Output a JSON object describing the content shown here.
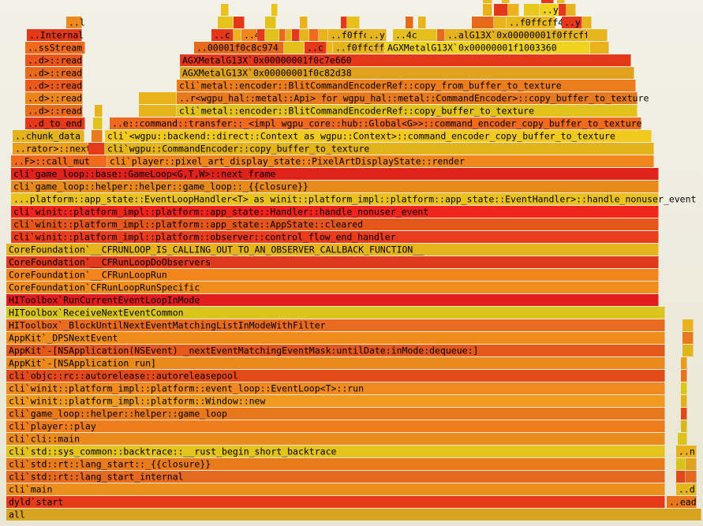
{
  "chart_data": {
    "type": "flamegraph",
    "orientation": "bottom-up",
    "x_domain": [
      0,
      891
    ],
    "frames": [
      {
        "d": 0,
        "s": 8,
        "e": 889,
        "label": "all",
        "color": "#d8a31f"
      },
      {
        "d": 1,
        "s": 8,
        "e": 843,
        "label": "dyld`start",
        "color": "#e63b1a"
      },
      {
        "d": 1,
        "s": 845,
        "e": 883,
        "label": "..ead",
        "color": "#e8761a"
      },
      {
        "d": 2,
        "s": 8,
        "e": 843,
        "label": "cli`main",
        "color": "#ed8f1c"
      },
      {
        "d": 2,
        "s": 857,
        "e": 883,
        "label": "..d",
        "color": "#e4b51c"
      },
      {
        "d": 3,
        "s": 8,
        "e": 843,
        "label": "cli`std::rt::lang_start_internal",
        "color": "#e66920"
      },
      {
        "d": 3,
        "s": 857,
        "e": 869,
        "label": "",
        "color": "#e04a1a"
      },
      {
        "d": 3,
        "s": 869,
        "e": 883,
        "label": "",
        "color": "#e36a20"
      },
      {
        "d": 4,
        "s": 8,
        "e": 843,
        "label": "cli`std::rt::lang_start::_{{closure}}",
        "color": "#e97a1c"
      },
      {
        "d": 4,
        "s": 857,
        "e": 869,
        "label": "",
        "color": "#d8c31c"
      },
      {
        "d": 4,
        "s": 869,
        "e": 883,
        "label": "",
        "color": "#e0a21c"
      },
      {
        "d": 5,
        "s": 8,
        "e": 843,
        "label": "cli`std::sys_common::backtrace::__rust_begin_short_backtrace",
        "color": "#e4c31c"
      },
      {
        "d": 5,
        "s": 857,
        "e": 883,
        "label": "..n",
        "color": "#e8b01d"
      },
      {
        "d": 6,
        "s": 8,
        "e": 843,
        "label": "cli`cli::main",
        "color": "#eb8a1c"
      },
      {
        "d": 6,
        "s": 859,
        "e": 871,
        "label": "",
        "color": "#ddc21c"
      },
      {
        "d": 7,
        "s": 8,
        "e": 843,
        "label": "cli`player::play",
        "color": "#ef7d1c"
      },
      {
        "d": 7,
        "s": 863,
        "e": 871,
        "label": "",
        "color": "#d8b71c"
      },
      {
        "d": 8,
        "s": 8,
        "e": 843,
        "label": "cli`game_loop::helper::helper::game_loop",
        "color": "#e8781c"
      },
      {
        "d": 8,
        "s": 863,
        "e": 871,
        "label": "",
        "color": "#e04a1a"
      },
      {
        "d": 9,
        "s": 8,
        "e": 843,
        "label": "cli`winit::platform_impl::platform::Window::new",
        "color": "#f09a1e"
      },
      {
        "d": 9,
        "s": 863,
        "e": 871,
        "label": "",
        "color": "#e1b01c"
      },
      {
        "d": 10,
        "s": 8,
        "e": 843,
        "label": "cli`winit::platform_impl::platform::event_loop::EventLoop<T>::run",
        "color": "#f08a1e"
      },
      {
        "d": 10,
        "s": 863,
        "e": 871,
        "label": "",
        "color": "#d8c71c"
      },
      {
        "d": 11,
        "s": 8,
        "e": 843,
        "label": "cli`objc::rc::autorelease::autoreleasepool",
        "color": "#e24a1a"
      },
      {
        "d": 11,
        "s": 863,
        "e": 871,
        "label": "",
        "color": "#e6721c"
      },
      {
        "d": 12,
        "s": 8,
        "e": 843,
        "label": "AppKit`-[NSApplication run]",
        "color": "#ea8a1c"
      },
      {
        "d": 12,
        "s": 863,
        "e": 871,
        "label": "",
        "color": "#eb9c1e"
      },
      {
        "d": 13,
        "s": 8,
        "e": 843,
        "label": "AppKit`-[NSApplication(NSEvent) _nextEventMatchingEventMask:untilDate:inMode:dequeue:]",
        "color": "#e4581c"
      },
      {
        "d": 13,
        "s": 865,
        "e": 879,
        "label": "",
        "color": "#e1b61c"
      },
      {
        "d": 14,
        "s": 8,
        "e": 843,
        "label": "AppKit`_DPSNextEvent",
        "color": "#ef8d1c"
      },
      {
        "d": 14,
        "s": 865,
        "e": 879,
        "label": "",
        "color": "#e67a1c"
      },
      {
        "d": 15,
        "s": 8,
        "e": 843,
        "label": "HIToolbox`_BlockUntilNextEventMatchingListInModeWithFilter",
        "color": "#e96b20"
      },
      {
        "d": 15,
        "s": 865,
        "e": 879,
        "label": "",
        "color": "#ebb21c"
      },
      {
        "d": 16,
        "s": 8,
        "e": 843,
        "label": "HIToolbox`ReceiveNextEventCommon",
        "color": "#d9c51c"
      },
      {
        "d": 17,
        "s": 8,
        "e": 835,
        "label": "HIToolbox`RunCurrentEventLoopInMode",
        "color": "#e21d1d"
      },
      {
        "d": 18,
        "s": 8,
        "e": 835,
        "label": "CoreFoundation`CFRunLoopRunSpecific",
        "color": "#f08d1c"
      },
      {
        "d": 19,
        "s": 8,
        "e": 835,
        "label": "CoreFoundation`__CFRunLoopRun",
        "color": "#f3851c"
      },
      {
        "d": 20,
        "s": 8,
        "e": 835,
        "label": "CoreFoundation`__CFRunLoopDoObservers",
        "color": "#df3a1c"
      },
      {
        "d": 21,
        "s": 8,
        "e": 835,
        "label": "CoreFoundation`__CFRUNLOOP_IS_CALLING_OUT_TO_AN_OBSERVER_CALLBACK_FUNCTION__",
        "color": "#e5b41c"
      },
      {
        "d": 22,
        "s": 14,
        "e": 835,
        "label": "cli`winit::platform_impl::platform::observer::control_flow_end_handler",
        "color": "#ea3b1c"
      },
      {
        "d": 23,
        "s": 14,
        "e": 835,
        "label": "cli`winit::platform_impl::platform::app_state::AppState::cleared",
        "color": "#e4561c"
      },
      {
        "d": 24,
        "s": 14,
        "e": 835,
        "label": "cli`winit::platform_impl::platform::app_state::Handler::handle_nonuser_event",
        "color": "#f1241c"
      },
      {
        "d": 25,
        "s": 14,
        "e": 835,
        "label": "...platform::app_state::EventLoopHandler<T> as winit::platform_impl::platform::app_state::EventHandler>::handle_nonuser_event",
        "color": "#e9c31c"
      },
      {
        "d": 26,
        "s": 14,
        "e": 835,
        "label": "cli`game_loop::helper::helper::game_loop::_{{closure}}",
        "color": "#e68a1c"
      },
      {
        "d": 27,
        "s": 14,
        "e": 835,
        "label": "cli`game_loop::base::GameLoop<G,T,W>::next_frame",
        "color": "#df231c"
      },
      {
        "d": 28,
        "s": 14,
        "e": 136,
        "label": "..F>::call_mut",
        "color": "#ef6a1c"
      },
      {
        "d": 28,
        "s": 136,
        "e": 829,
        "label": "cli`player::pixel_art_display_state::PixelArtDisplayState::render",
        "color": "#f0861c"
      },
      {
        "d": 29,
        "s": 16,
        "e": 112,
        "label": "..rator>::next",
        "color": "#ea9c1c"
      },
      {
        "d": 29,
        "s": 112,
        "e": 133,
        "label": "",
        "color": "#e53a1a"
      },
      {
        "d": 29,
        "s": 133,
        "e": 829,
        "label": "cli`wgpu::CommandEncoder::copy_buffer_to_texture",
        "color": "#e3b31c"
      },
      {
        "d": 30,
        "s": 16,
        "e": 107,
        "label": "..chunk_data",
        "color": "#e3b21c"
      },
      {
        "d": 30,
        "s": 116,
        "e": 130,
        "label": "",
        "color": "#e67a1c"
      },
      {
        "d": 30,
        "s": 133,
        "e": 826,
        "label": "cli`<wgpu::backend::direct::Context as wgpu::Context>::command_encoder_copy_buffer_to_texture",
        "color": "#f2c91e"
      },
      {
        "d": 31,
        "s": 32,
        "e": 108,
        "label": "..d_to_end",
        "color": "#e4381a"
      },
      {
        "d": 31,
        "s": 118,
        "e": 130,
        "label": "",
        "color": "#e0c41c"
      },
      {
        "d": 31,
        "s": 139,
        "e": 813,
        "label": "..e::command::transfer::_<impl wgpu_core::hub::Global<G>>::command_encoder_copy_buffer_to_texture",
        "color": "#ef6a1c"
      },
      {
        "d": 32,
        "s": 32,
        "e": 105,
        "label": "..d>::read",
        "color": "#e96b1c"
      },
      {
        "d": 32,
        "s": 120,
        "e": 130,
        "label": "",
        "color": "#e6b41c"
      },
      {
        "d": 32,
        "s": 176,
        "e": 224,
        "label": "",
        "color": "#e5b41c"
      },
      {
        "d": 32,
        "s": 224,
        "e": 808,
        "label": "cli`metal::encoder::BlitCommandEncoderRef::copy_buffer_to_texture",
        "color": "#e3c21c"
      },
      {
        "d": 33,
        "s": 32,
        "e": 105,
        "label": "..d>::read",
        "color": "#ec861c"
      },
      {
        "d": 33,
        "s": 176,
        "e": 224,
        "label": "",
        "color": "#e8b21c"
      },
      {
        "d": 33,
        "s": 224,
        "e": 808,
        "label": "..r<wgpu_hal::metal::Api> for wgpu_hal::metal::CommandEncoder>::copy_buffer_to_texture",
        "color": "#e77a1c"
      },
      {
        "d": 34,
        "s": 32,
        "e": 105,
        "label": "..d>::read",
        "color": "#e95a1c"
      },
      {
        "d": 34,
        "s": 224,
        "e": 806,
        "label": "cli`metal::encoder::BlitCommandEncoderRef::copy_from_buffer_to_texture",
        "color": "#eb7d1c"
      },
      {
        "d": 35,
        "s": 32,
        "e": 105,
        "label": "..d>::read",
        "color": "#e76a1c"
      },
      {
        "d": 35,
        "s": 228,
        "e": 804,
        "label": "AGXMetalG13X`0x00000001f0c82d38",
        "color": "#e0a21c"
      },
      {
        "d": 36,
        "s": 32,
        "e": 105,
        "label": "..d>::read",
        "color": "#e8561c"
      },
      {
        "d": 36,
        "s": 228,
        "e": 800,
        "label": "AGXMetalG13X`0x00000001f0c7e660",
        "color": "#e4381a"
      },
      {
        "d": 37,
        "s": 32,
        "e": 108,
        "label": "..ssStream",
        "color": "#ef6a1c"
      },
      {
        "d": 37,
        "s": 246,
        "e": 360,
        "label": "..00001f0c8c974",
        "color": "#e66a1c"
      },
      {
        "d": 37,
        "s": 360,
        "e": 386,
        "label": "",
        "color": "#e4c01c"
      },
      {
        "d": 37,
        "s": 386,
        "e": 414,
        "label": "..c",
        "color": "#e53a1a"
      },
      {
        "d": 37,
        "s": 414,
        "e": 422,
        "label": "",
        "color": "#f0b41c"
      },
      {
        "d": 37,
        "s": 422,
        "e": 488,
        "label": "..f0ffcff4",
        "color": "#e5b41c"
      },
      {
        "d": 37,
        "s": 488,
        "e": 748,
        "label": "AGXMetalG13X`0x00000001f1003360",
        "color": "#f0d21e"
      },
      {
        "d": 37,
        "s": 748,
        "e": 772,
        "label": "",
        "color": "#e8b21c"
      },
      {
        "d": 38,
        "s": 34,
        "e": 104,
        "label": "..Internal",
        "color": "#e4381a"
      },
      {
        "d": 38,
        "s": 268,
        "e": 296,
        "label": "..c",
        "color": "#e4381a"
      },
      {
        "d": 38,
        "s": 296,
        "e": 306,
        "label": "",
        "color": "#eab21c"
      },
      {
        "d": 38,
        "s": 306,
        "e": 326,
        "label": "..4",
        "color": "#f0861c"
      },
      {
        "d": 38,
        "s": 326,
        "e": 336,
        "label": "",
        "color": "#e3381a"
      },
      {
        "d": 38,
        "s": 336,
        "e": 354,
        "label": "",
        "color": "#e0c21c"
      },
      {
        "d": 38,
        "s": 354,
        "e": 362,
        "label": "",
        "color": "#e66a1c"
      },
      {
        "d": 38,
        "s": 362,
        "e": 370,
        "label": "",
        "color": "#eab21c"
      },
      {
        "d": 38,
        "s": 370,
        "e": 380,
        "label": "",
        "color": "#e23a1a"
      },
      {
        "d": 38,
        "s": 380,
        "e": 392,
        "label": "",
        "color": "#e7b41c"
      },
      {
        "d": 38,
        "s": 392,
        "e": 404,
        "label": "",
        "color": "#ee6a1c"
      },
      {
        "d": 38,
        "s": 404,
        "e": 416,
        "label": "",
        "color": "#eab21c"
      },
      {
        "d": 38,
        "s": 416,
        "e": 482,
        "label": "..f0ffcff4",
        "color": "#e6b41c"
      },
      {
        "d": 38,
        "s": 464,
        "e": 490,
        "label": "..y",
        "color": "#e6b41c"
      },
      {
        "d": 38,
        "s": 498,
        "e": 554,
        "label": "..4c",
        "color": "#e5c01c"
      },
      {
        "d": 38,
        "s": 554,
        "e": 564,
        "label": "",
        "color": "#e66a1c"
      },
      {
        "d": 38,
        "s": 564,
        "e": 744,
        "label": "..alG13X`0x00000001f0ffcff4",
        "color": "#e4b21c"
      },
      {
        "d": 38,
        "s": 744,
        "e": 770,
        "label": "",
        "color": "#e7b61c"
      },
      {
        "d": 39,
        "s": 84,
        "e": 104,
        "label": "..l",
        "color": "#ec8a1c"
      },
      {
        "d": 39,
        "s": 276,
        "e": 296,
        "label": "",
        "color": "#e6c21c"
      },
      {
        "d": 39,
        "s": 296,
        "e": 310,
        "label": "",
        "color": "#e4381a"
      },
      {
        "d": 39,
        "s": 336,
        "e": 350,
        "label": "",
        "color": "#e4c21c"
      },
      {
        "d": 39,
        "s": 380,
        "e": 390,
        "label": "",
        "color": "#eab21c"
      },
      {
        "d": 39,
        "s": 432,
        "e": 440,
        "label": "",
        "color": "#e23a1a"
      },
      {
        "d": 39,
        "s": 440,
        "e": 456,
        "label": "",
        "color": "#e8c01c"
      },
      {
        "d": 39,
        "s": 514,
        "e": 524,
        "label": "",
        "color": "#e66a1c"
      },
      {
        "d": 39,
        "s": 530,
        "e": 540,
        "label": "",
        "color": "#e8b41c"
      },
      {
        "d": 39,
        "s": 598,
        "e": 626,
        "label": "",
        "color": "#e66a1c"
      },
      {
        "d": 39,
        "s": 626,
        "e": 642,
        "label": "",
        "color": "#e8b21c"
      },
      {
        "d": 39,
        "s": 642,
        "e": 704,
        "label": "..f0ffcff4",
        "color": "#e9b81c"
      },
      {
        "d": 39,
        "s": 712,
        "e": 738,
        "label": "..y",
        "color": "#e4381a"
      },
      {
        "d": 39,
        "s": 738,
        "e": 750,
        "label": "",
        "color": "#e6b41c"
      },
      {
        "d": 40,
        "s": 280,
        "e": 290,
        "label": "",
        "color": "#eac01c"
      },
      {
        "d": 40,
        "s": 344,
        "e": 352,
        "label": "",
        "color": "#e8c41c"
      },
      {
        "d": 40,
        "s": 612,
        "e": 624,
        "label": "",
        "color": "#e8b21c"
      },
      {
        "d": 40,
        "s": 626,
        "e": 644,
        "label": "",
        "color": "#e4381a"
      },
      {
        "d": 40,
        "s": 644,
        "e": 658,
        "label": "",
        "color": "#eab21c"
      },
      {
        "d": 40,
        "s": 664,
        "e": 684,
        "label": "",
        "color": "#e8c81c"
      },
      {
        "d": 40,
        "s": 684,
        "e": 708,
        "label": "..y",
        "color": "#f0d21e"
      },
      {
        "d": 40,
        "s": 708,
        "e": 718,
        "label": "",
        "color": "#e4381a"
      },
      {
        "d": 40,
        "s": 718,
        "e": 730,
        "label": "",
        "color": "#e8b21c"
      },
      {
        "d": 41,
        "s": 612,
        "e": 624,
        "label": "",
        "color": "#eab81c"
      },
      {
        "d": 41,
        "s": 636,
        "e": 646,
        "label": "",
        "color": "#e8c01c"
      },
      {
        "d": 41,
        "s": 686,
        "e": 702,
        "label": "",
        "color": "#e4381a"
      },
      {
        "d": 41,
        "s": 706,
        "e": 716,
        "label": "",
        "color": "#eac01c"
      }
    ]
  }
}
